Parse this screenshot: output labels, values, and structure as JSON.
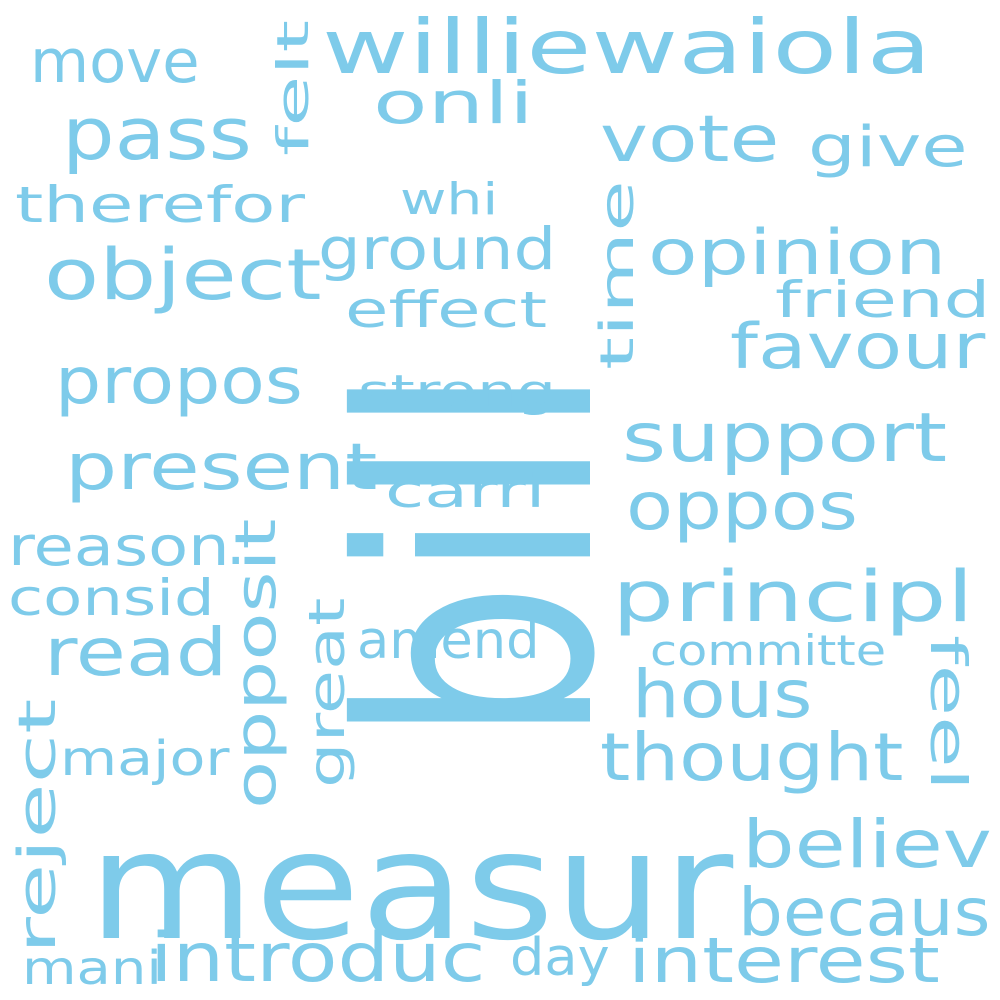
{
  "style": {
    "word_color": "#7ecbea",
    "background": "#ffffff"
  },
  "words": [
    "bill",
    "measur",
    "williewaiola",
    "move",
    "pass",
    "onli",
    "vote",
    "give",
    "felt",
    "therefor",
    "whi",
    "ground",
    "object",
    "opinion",
    "time",
    "effect",
    "friend",
    "favour",
    "propos",
    "strong",
    "support",
    "present",
    "carri",
    "oppos",
    "reason",
    "opposit",
    "consid",
    "principl",
    "read",
    "great",
    "amend",
    "committe",
    "feel",
    "hous",
    "reject",
    "major",
    "thought",
    "believ",
    "becaus",
    "mani",
    "introduc",
    "day",
    "interest"
  ]
}
